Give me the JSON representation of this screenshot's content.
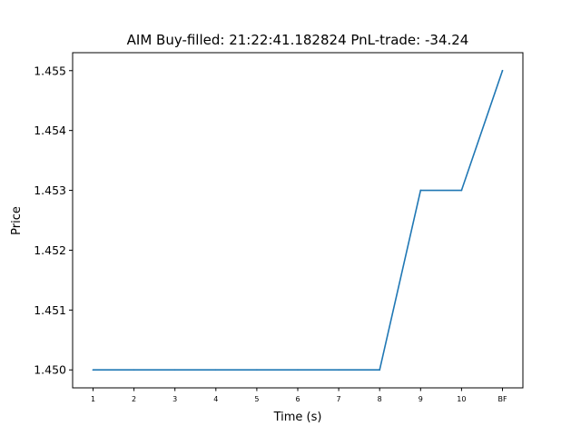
{
  "chart_data": {
    "type": "line",
    "title": "AIM  Buy-filled:  21:22:41.182824  PnL-trade:  -34.24",
    "xlabel": "Time (s)",
    "ylabel": "Price",
    "categories": [
      "1",
      "2",
      "3",
      "4",
      "5",
      "6",
      "7",
      "8",
      "9",
      "10",
      "BF"
    ],
    "series": [
      {
        "values": [
          1.45,
          1.45,
          1.45,
          1.45,
          1.45,
          1.45,
          1.45,
          1.45,
          1.453,
          1.453,
          1.455
        ],
        "color": "#1f77b4"
      }
    ],
    "ylim": [
      1.4497,
      1.4553
    ],
    "yticks": [
      "1.450",
      "1.451",
      "1.452",
      "1.453",
      "1.454",
      "1.455"
    ],
    "grid": false,
    "legend": "none"
  }
}
